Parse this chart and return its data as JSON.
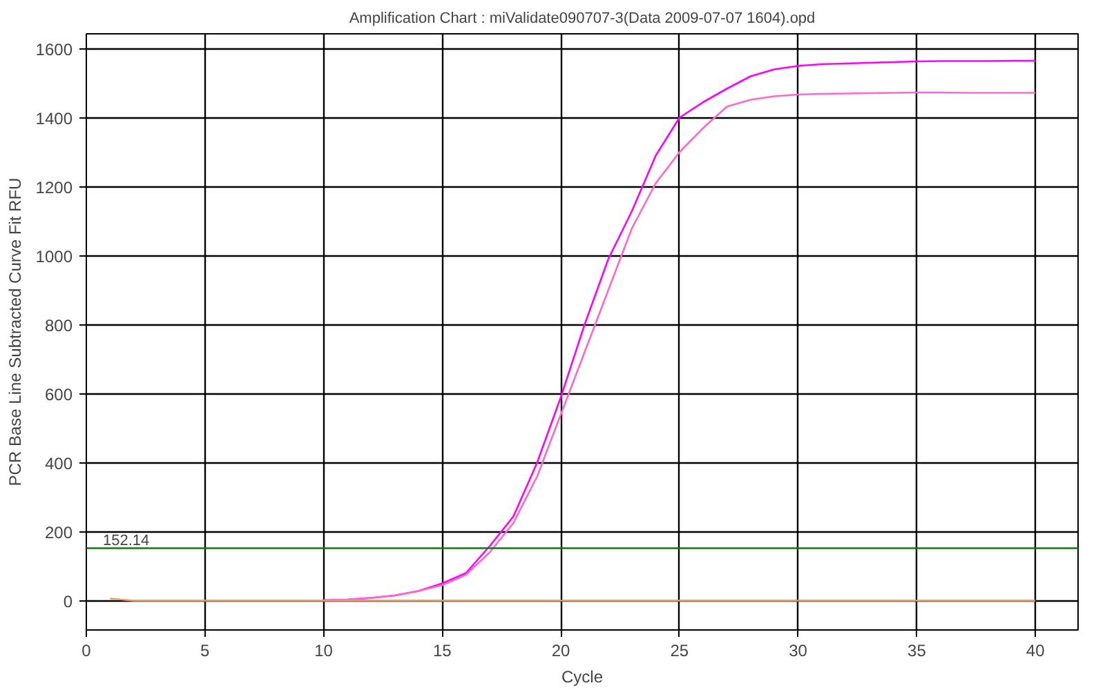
{
  "chart_data": {
    "type": "line",
    "title": "Amplification Chart : miValidate090707-3(Data 2009-07-07 1604).opd",
    "xlabel": "Cycle",
    "ylabel": "PCR Base Line Subtracted Curve Fit RFU",
    "x": [
      1,
      2,
      3,
      4,
      5,
      6,
      7,
      8,
      9,
      10,
      11,
      12,
      13,
      14,
      15,
      16,
      17,
      18,
      19,
      20,
      21,
      22,
      23,
      24,
      25,
      26,
      27,
      28,
      29,
      30,
      31,
      32,
      33,
      34,
      35,
      36,
      37,
      38,
      39,
      40
    ],
    "series": [
      {
        "color": "#ff00ff",
        "values": [
          null,
          null,
          null,
          null,
          null,
          null,
          null,
          null,
          null,
          1,
          3,
          8,
          15,
          28,
          50,
          80,
          158,
          244,
          400,
          590,
          800,
          990,
          1130,
          1290,
          1400,
          1445,
          1484,
          1520,
          1540,
          1550,
          1555,
          1557,
          1559,
          1561,
          1563,
          1564,
          1564,
          1564,
          1565,
          1565
        ]
      },
      {
        "color": "#ff66cc",
        "values": [
          null,
          null,
          null,
          null,
          null,
          null,
          null,
          null,
          null,
          1,
          3,
          8,
          15,
          28,
          45,
          75,
          140,
          225,
          360,
          540,
          720,
          900,
          1080,
          1210,
          1300,
          1370,
          1432,
          1452,
          1462,
          1467,
          1469,
          1470,
          1471,
          1472,
          1473,
          1473,
          1472,
          1472,
          1472,
          1472
        ]
      },
      {
        "color": "#e8a060",
        "values": [
          6,
          0,
          0,
          0,
          0,
          0,
          0,
          0,
          0,
          0,
          0,
          0,
          0,
          0,
          0,
          0,
          0,
          0,
          0,
          0,
          0,
          0,
          0,
          0,
          0,
          0,
          0,
          0,
          0,
          0,
          0,
          0,
          0,
          0,
          0,
          0,
          0,
          0,
          0,
          0
        ]
      }
    ],
    "xlim": [
      0,
      41.8
    ],
    "xticks": [
      0,
      5,
      10,
      15,
      20,
      25,
      30,
      35,
      40
    ],
    "ylim": [
      -85,
      1643
    ],
    "yticks": [
      0,
      200,
      400,
      600,
      800,
      1000,
      1200,
      1400,
      1600
    ],
    "ref_lines": [
      {
        "axis": "y",
        "value": 152.14,
        "label": "152.14",
        "color": "#008000"
      }
    ],
    "grid": true,
    "marker": "none",
    "line_style": "solid"
  }
}
